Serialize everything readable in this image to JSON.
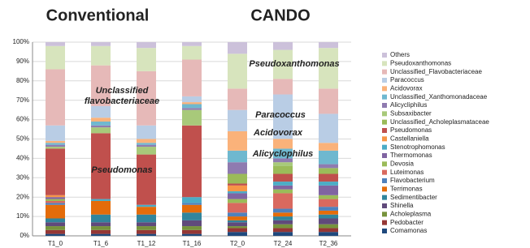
{
  "chart_data": {
    "type": "stacked_bar",
    "titles": [
      "Conventional",
      "CANDO"
    ],
    "annotations": [
      [
        "Unclassified",
        "flavobacteriaceae"
      ],
      [
        "Pseudomonas"
      ],
      [
        "Pseudoxanthomonas"
      ],
      [
        "Paracoccus"
      ],
      [
        "Acidovorax"
      ],
      [
        "Alicyclophilus"
      ]
    ],
    "categories": [
      "T1_0",
      "T1_6",
      "T1_12",
      "T1_16",
      "T2_0",
      "T2_24",
      "T2_36"
    ],
    "ylim": [
      0,
      100
    ],
    "yticks": [
      {
        "value": 0,
        "label": "0%"
      },
      {
        "value": 10,
        "label": "10%"
      },
      {
        "value": 20,
        "label": "20%"
      },
      {
        "value": 30,
        "label": "30%"
      },
      {
        "value": 40,
        "label": "40%"
      },
      {
        "value": 50,
        "label": "50%"
      },
      {
        "value": 60,
        "label": "60%"
      },
      {
        "value": 70,
        "label": "70%"
      },
      {
        "value": 80,
        "label": "80%"
      },
      {
        "value": 90,
        "label": "90%"
      },
      {
        "value": 100,
        "label": "100%"
      }
    ],
    "grid": true,
    "legend": "right",
    "series": [
      {
        "name": "Comamonas",
        "color": "#1f497d",
        "values": [
          1,
          1,
          1,
          1,
          2,
          2,
          2
        ]
      },
      {
        "name": "Pedobacter",
        "color": "#953735",
        "values": [
          2,
          2,
          2,
          2,
          2,
          2,
          2
        ]
      },
      {
        "name": "Acholeplasma",
        "color": "#77933c",
        "values": [
          2,
          2,
          2,
          2,
          1,
          2,
          2
        ]
      },
      {
        "name": "Shinella",
        "color": "#604a7b",
        "values": [
          2,
          2,
          2,
          3,
          2,
          2,
          3
        ]
      },
      {
        "name": "Sedimentibacter",
        "color": "#31859c",
        "values": [
          2,
          4,
          4,
          4,
          1,
          2,
          2
        ]
      },
      {
        "name": "Terrimonas",
        "color": "#e46c0a",
        "values": [
          7,
          7,
          4,
          4,
          2,
          2,
          2
        ]
      },
      {
        "name": "Flavobacterium",
        "color": "#4f81bd",
        "values": [
          1,
          0,
          0,
          1,
          2,
          2,
          2
        ]
      },
      {
        "name": "Luteimonas",
        "color": "#d9695f",
        "values": [
          1,
          0,
          0,
          0,
          5,
          8,
          4
        ]
      },
      {
        "name": "Devosia",
        "color": "#9bbb59",
        "values": [
          1,
          0,
          0,
          0,
          2,
          2,
          2
        ]
      },
      {
        "name": "Thermomonas",
        "color": "#8064a2",
        "values": [
          1,
          0,
          0,
          0,
          3,
          2,
          5
        ]
      },
      {
        "name": "Stenotrophomonas",
        "color": "#4bacc6",
        "values": [
          0,
          1,
          1,
          3,
          1,
          2,
          2
        ]
      },
      {
        "name": "Castellaniella",
        "color": "#f79646",
        "values": [
          1,
          0,
          0,
          0,
          3,
          0,
          0
        ]
      },
      {
        "name": "Pseudomonas",
        "color": "#c0504d",
        "values": [
          24,
          34,
          26,
          37,
          1,
          4,
          4
        ]
      },
      {
        "name": "Unclassified_Acholeplasmataceae",
        "color": "#9bbb59",
        "values": [
          0,
          0,
          0,
          0,
          5,
          4,
          3
        ]
      },
      {
        "name": "Subsaxibacter",
        "color": "#a8c97a",
        "values": [
          1,
          3,
          4,
          8,
          0,
          2,
          0
        ]
      },
      {
        "name": "Alicycliphilus",
        "color": "#8f7bb0",
        "values": [
          1,
          1,
          1,
          1,
          6,
          2,
          2
        ]
      },
      {
        "name": "Unclassified_Xanthomonadaceae",
        "color": "#6fb8cf",
        "values": [
          1,
          2,
          1,
          2,
          6,
          5,
          7
        ]
      },
      {
        "name": "Acidovorax",
        "color": "#fab27a",
        "values": [
          1,
          2,
          2,
          1,
          10,
          5,
          4
        ]
      },
      {
        "name": "Paracoccus",
        "color": "#b9cde5",
        "values": [
          8,
          6,
          7,
          3,
          11,
          23,
          15
        ]
      },
      {
        "name": "Unclassified_Flavobacteriaceae",
        "color": "#e6b9b8",
        "values": [
          29,
          21,
          28,
          19,
          11,
          8,
          13
        ]
      },
      {
        "name": "Pseudoxanthomonas",
        "color": "#d7e4bd",
        "values": [
          12,
          10,
          12,
          7,
          18,
          15,
          21
        ]
      },
      {
        "name": "Others",
        "color": "#ccc1da",
        "values": [
          2,
          2,
          3,
          2,
          6,
          4,
          3
        ]
      }
    ]
  }
}
